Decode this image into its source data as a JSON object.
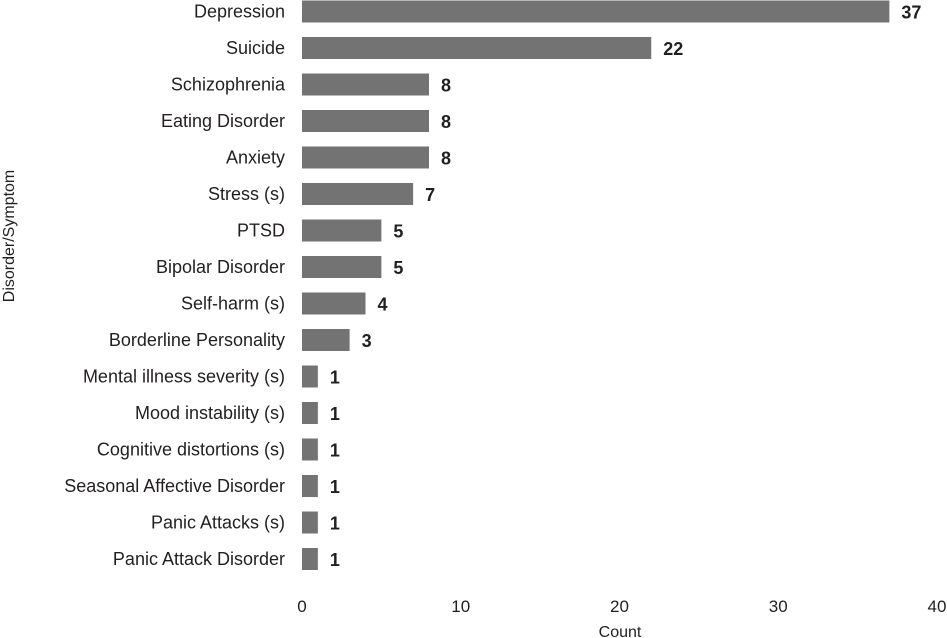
{
  "chart_data": {
    "type": "bar",
    "orientation": "horizontal",
    "categories": [
      "Depression",
      "Suicide",
      "Schizophrenia",
      "Eating Disorder",
      "Anxiety",
      "Stress (s)",
      "PTSD",
      "Bipolar Disorder",
      "Self-harm (s)",
      "Borderline Personality",
      "Mental illness severity (s)",
      "Mood instability (s)",
      "Cognitive distortions (s)",
      "Seasonal Affective Disorder",
      "Panic Attacks (s)",
      "Panic Attack Disorder"
    ],
    "values": [
      37,
      22,
      8,
      8,
      8,
      7,
      5,
      5,
      4,
      3,
      1,
      1,
      1,
      1,
      1,
      1
    ],
    "xlabel": "Count",
    "ylabel": "Disorder/Symptom",
    "xlim": [
      0,
      40
    ],
    "xticks": [
      0,
      10,
      20,
      30,
      40
    ],
    "grid": false,
    "legend": "none",
    "bar_color": "#737373"
  }
}
